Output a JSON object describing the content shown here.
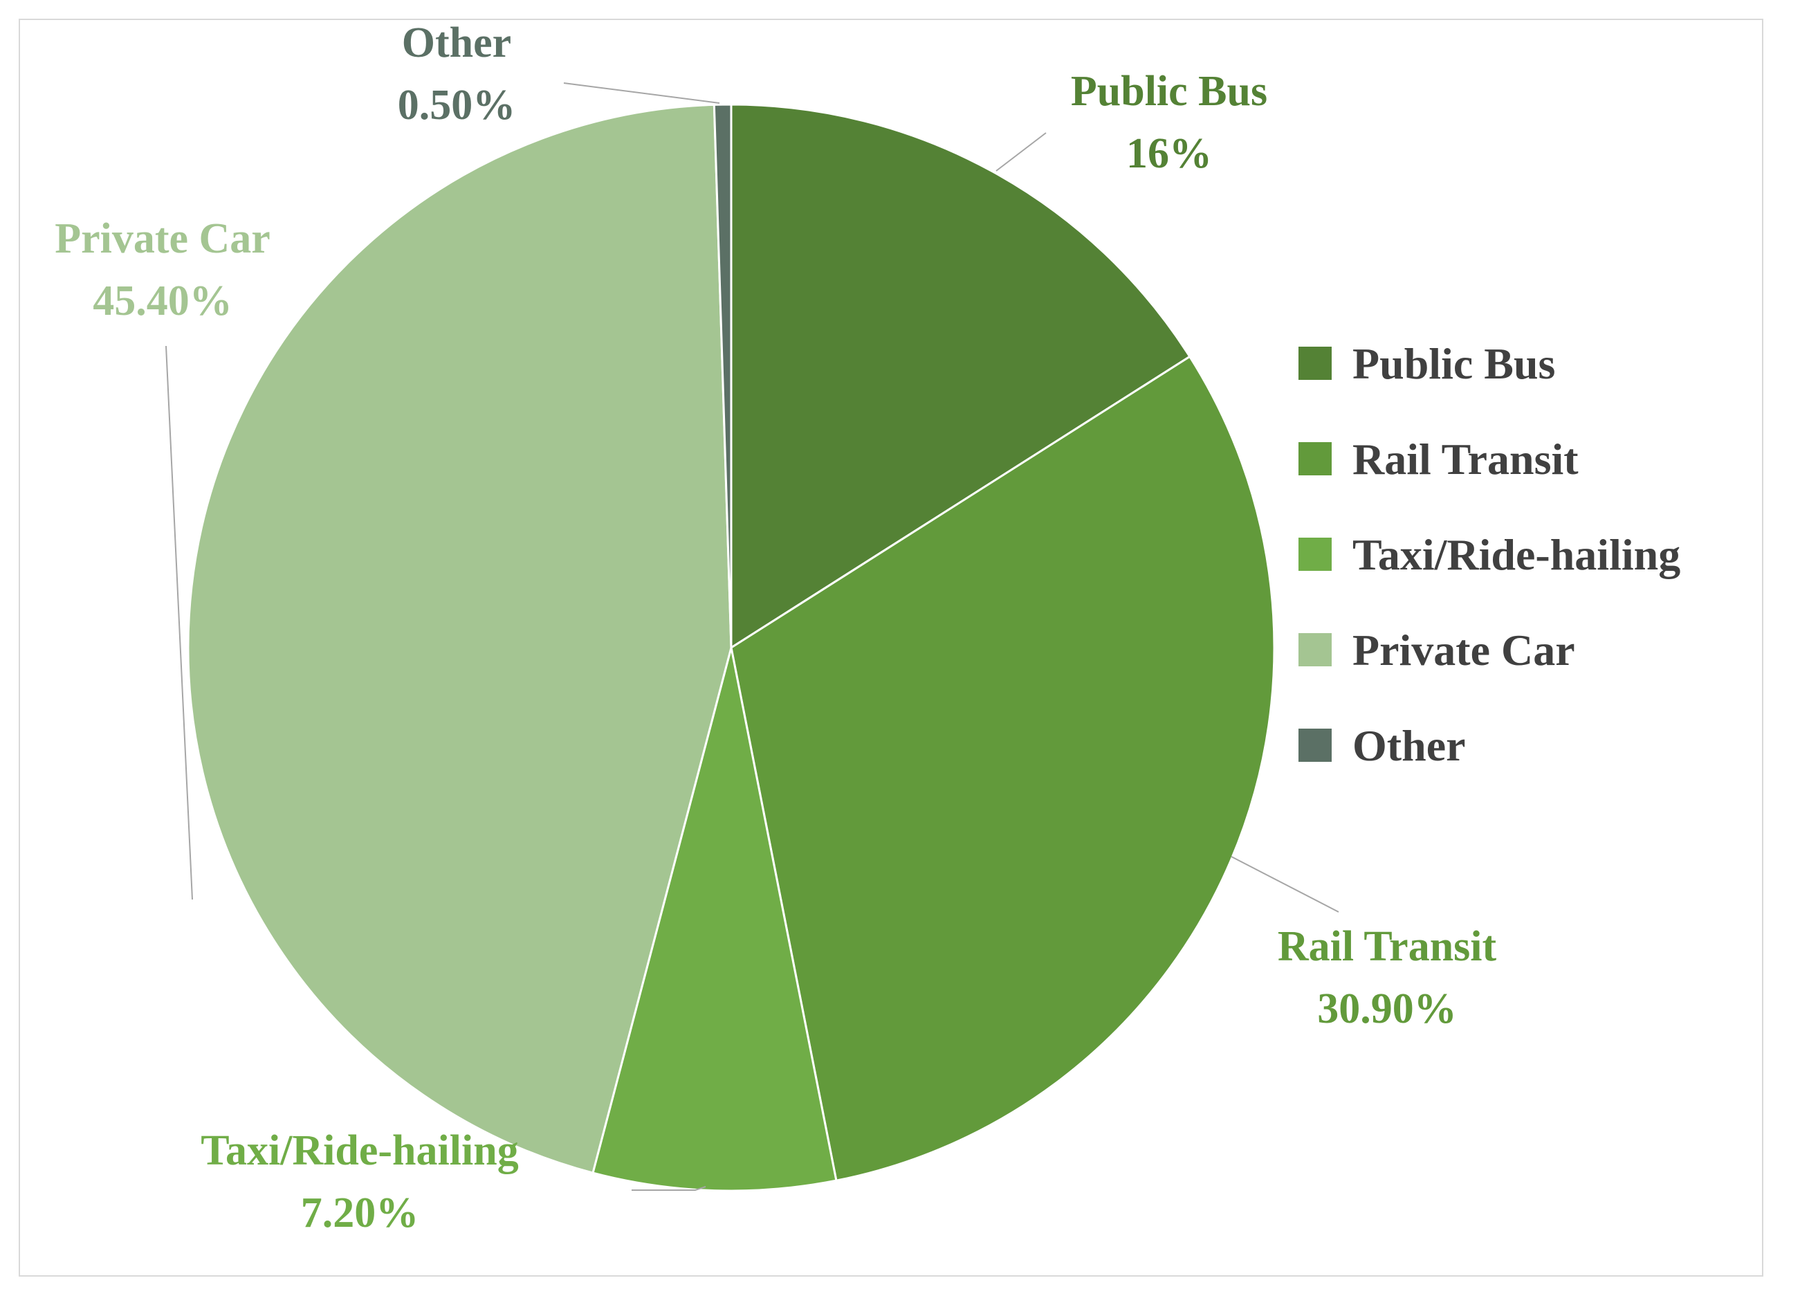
{
  "chart_data": {
    "type": "pie",
    "title": "",
    "categories": [
      "Public Bus",
      "Rail Transit",
      "Taxi/Ride-hailing",
      "Private Car",
      "Other"
    ],
    "values": [
      16,
      30.9,
      7.2,
      45.4,
      0.5
    ],
    "value_labels": [
      "16%",
      "30.90%",
      "7.20%",
      "45.40%",
      "0.50%"
    ],
    "colors": [
      "#548235",
      "#629a3b",
      "#70ad47",
      "#a4c592",
      "#5b7065"
    ],
    "start_angle_deg": 0,
    "direction": "clockwise",
    "legend_position": "right",
    "data_labels": "outside with leader lines"
  }
}
